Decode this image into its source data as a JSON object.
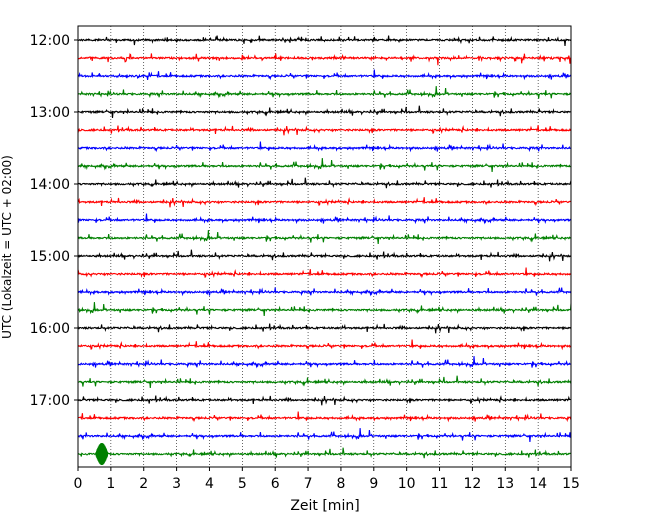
{
  "chart_data": {
    "type": "line",
    "subtype": "seismogram-helicorder",
    "xlabel": "Zeit  [min]",
    "ylabel": "UTC (Lokalzeit = UTC + 02:00)",
    "xlim": [
      0,
      15
    ],
    "x_ticks": [
      "0",
      "1",
      "2",
      "3",
      "4",
      "5",
      "6",
      "7",
      "8",
      "9",
      "10",
      "11",
      "12",
      "13",
      "14",
      "15"
    ],
    "y_ticks": [
      "12:00",
      "13:00",
      "14:00",
      "15:00",
      "16:00",
      "17:00"
    ],
    "grid": "vertical dotted at each minute",
    "trace_colors": [
      "#000000",
      "#ff0000",
      "#0000ff",
      "#008000"
    ],
    "traces": [
      {
        "start": "12:00",
        "color": "#000000"
      },
      {
        "start": "12:15",
        "color": "#ff0000"
      },
      {
        "start": "12:30",
        "color": "#0000ff"
      },
      {
        "start": "12:45",
        "color": "#008000"
      },
      {
        "start": "13:00",
        "color": "#000000"
      },
      {
        "start": "13:15",
        "color": "#ff0000"
      },
      {
        "start": "13:30",
        "color": "#0000ff"
      },
      {
        "start": "13:45",
        "color": "#008000"
      },
      {
        "start": "14:00",
        "color": "#000000"
      },
      {
        "start": "14:15",
        "color": "#ff0000"
      },
      {
        "start": "14:30",
        "color": "#0000ff"
      },
      {
        "start": "14:45",
        "color": "#008000"
      },
      {
        "start": "15:00",
        "color": "#000000"
      },
      {
        "start": "15:15",
        "color": "#ff0000"
      },
      {
        "start": "15:30",
        "color": "#0000ff"
      },
      {
        "start": "15:45",
        "color": "#008000"
      },
      {
        "start": "16:00",
        "color": "#000000"
      },
      {
        "start": "16:15",
        "color": "#ff0000"
      },
      {
        "start": "16:30",
        "color": "#0000ff"
      },
      {
        "start": "16:45",
        "color": "#008000"
      },
      {
        "start": "17:00",
        "color": "#000000"
      },
      {
        "start": "17:15",
        "color": "#ff0000"
      },
      {
        "start": "17:30",
        "color": "#0000ff"
      },
      {
        "start": "17:45",
        "color": "#008000"
      }
    ]
  }
}
